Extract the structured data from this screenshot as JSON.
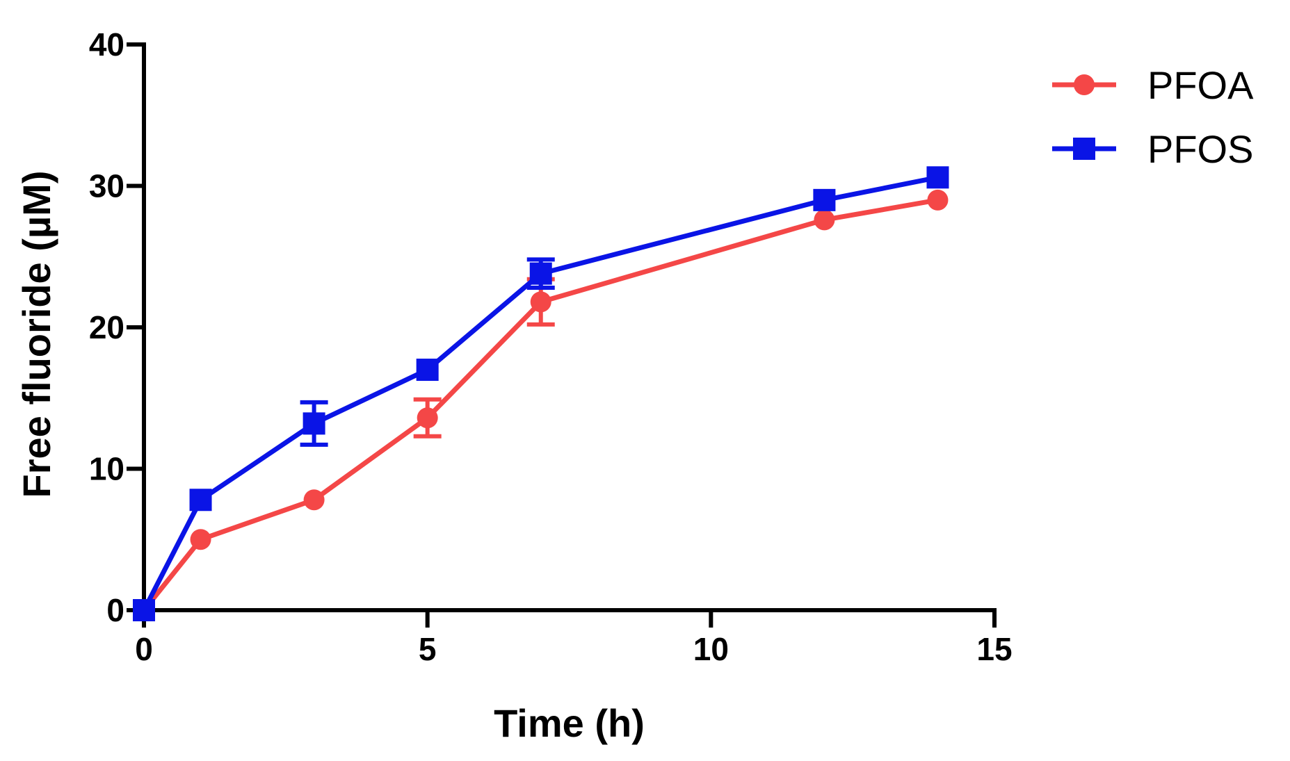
{
  "chart_data": {
    "type": "line",
    "title": "",
    "xlabel": "Time (h)",
    "ylabel": "Free fluoride (µM)",
    "xlim": [
      0,
      15
    ],
    "ylim": [
      0,
      40
    ],
    "xticks": [
      0,
      5,
      10,
      15
    ],
    "yticks": [
      0,
      10,
      20,
      30,
      40
    ],
    "xtick_labels": [
      "0",
      "5",
      "10",
      "15"
    ],
    "ytick_labels": [
      "0",
      "10",
      "20",
      "30",
      "40"
    ],
    "grid": false,
    "legend_position": "top-right",
    "series": [
      {
        "name": "PFOA",
        "color": "#f44747",
        "marker": "circle",
        "x": [
          0,
          1,
          3,
          5,
          7,
          12,
          14
        ],
        "y": [
          0,
          5.0,
          7.8,
          13.6,
          21.8,
          27.6,
          29.0
        ],
        "err": [
          0,
          0,
          0,
          1.3,
          1.6,
          0,
          0
        ]
      },
      {
        "name": "PFOS",
        "color": "#0a14e6",
        "marker": "square",
        "x": [
          0,
          1,
          3,
          5,
          7,
          12,
          14
        ],
        "y": [
          0,
          7.8,
          13.2,
          17.0,
          23.8,
          29.0,
          30.6
        ],
        "err": [
          0,
          0,
          1.5,
          0,
          1.0,
          0,
          0
        ]
      }
    ]
  }
}
